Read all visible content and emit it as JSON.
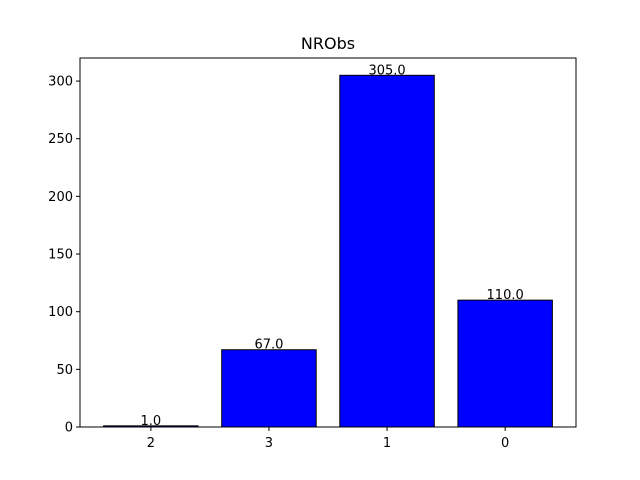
{
  "chart_data": {
    "type": "bar",
    "title": "NRObs",
    "xlabel": "",
    "ylabel": "",
    "categories": [
      "2",
      "3",
      "1",
      "0"
    ],
    "values": [
      1.0,
      67.0,
      305.0,
      110.0
    ],
    "data_labels": [
      "1.0",
      "67.0",
      "305.0",
      "110.0"
    ],
    "ylim": [
      0,
      320
    ],
    "yticks": [
      0,
      50,
      100,
      150,
      200,
      250,
      300
    ],
    "ytick_labels": [
      "0",
      "50",
      "100",
      "150",
      "200",
      "250",
      "300"
    ],
    "grid": false,
    "legend": "none",
    "bar_color": "#0000ff",
    "edge_color": "#000000"
  }
}
